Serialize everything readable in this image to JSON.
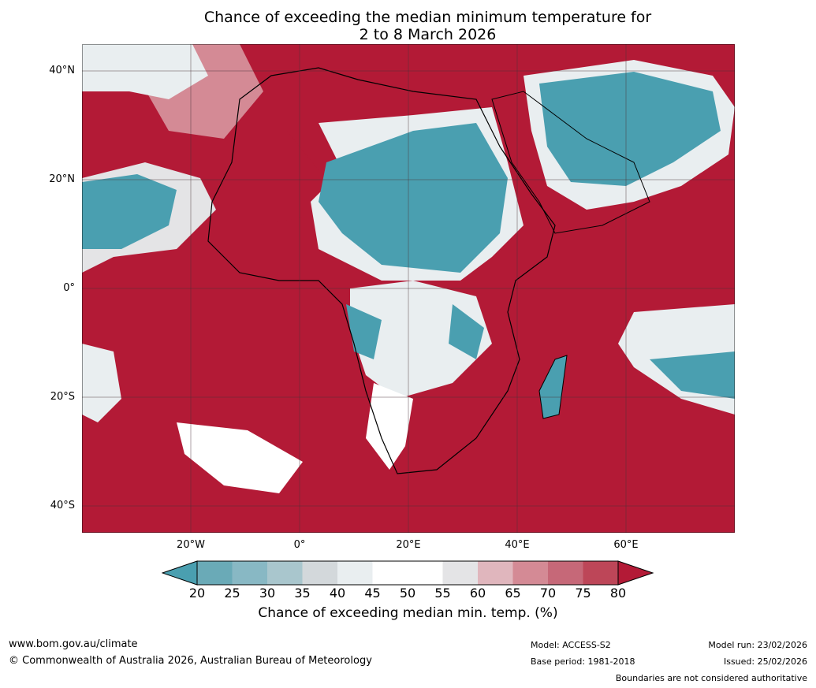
{
  "title": {
    "line1": "Chance of exceeding the median minimum temperature for",
    "line2": "2 to 8 March 2026"
  },
  "map": {
    "region": "Africa and Middle East",
    "lat_ticks": [
      "40°N",
      "20°N",
      "0°",
      "20°S",
      "40°S"
    ],
    "lon_ticks": [
      "20°W",
      "0°",
      "20°E",
      "40°E",
      "60°E"
    ]
  },
  "colorbar": {
    "labels": [
      "20",
      "25",
      "30",
      "35",
      "40",
      "45",
      "50",
      "55",
      "60",
      "65",
      "70",
      "75",
      "80"
    ],
    "colors": [
      "#4a9fb0",
      "#6aaab7",
      "#88b8c4",
      "#a9c6cd",
      "#d3d8db",
      "#e9eef0",
      "#ffffff",
      "#ffffff",
      "#e4e4e6",
      "#e0b6bd",
      "#d48a95",
      "#c66878",
      "#bd4658",
      "#b31a36"
    ],
    "title": "Chance of exceeding median min. temp. (%)"
  },
  "footer": {
    "website": "www.bom.gov.au/climate",
    "copyright": "© Commonwealth of Australia 2026, Australian Bureau of Meteorology",
    "model": "Model: ACCESS-S2",
    "base_period": "Base period: 1981-2018",
    "model_run": "Model run: 23/02/2026",
    "issued": "Issued: 25/02/2026",
    "disclaimer": "Boundaries are not considered authoritative"
  }
}
